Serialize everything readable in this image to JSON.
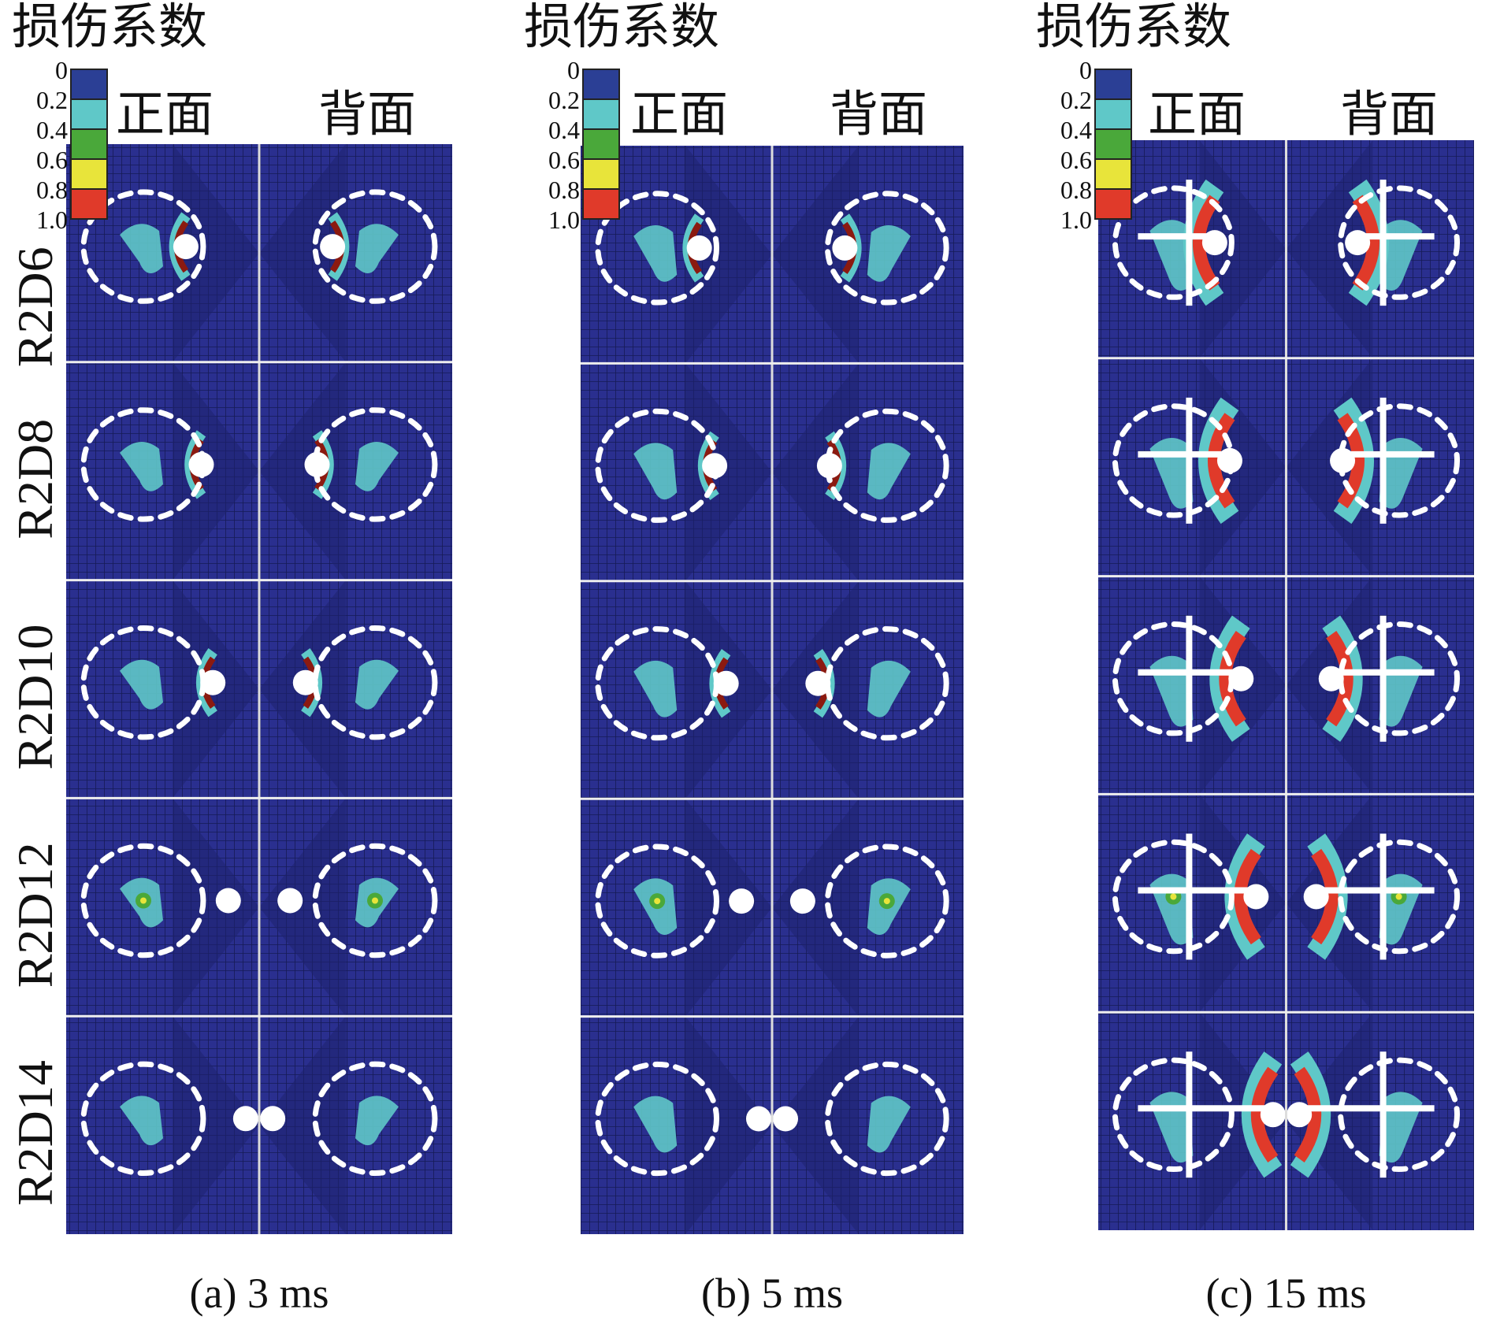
{
  "legend": {
    "title": "损伤系数",
    "ticks": [
      "0",
      "0.2",
      "0.4",
      "0.6",
      "0.8",
      "1.0"
    ],
    "colors": [
      "#2b3f95",
      "#5fc8c8",
      "#4aa83a",
      "#e8e43a",
      "#e03a2a"
    ]
  },
  "side_labels": {
    "front": "正面",
    "back": "背面"
  },
  "rows": [
    "R2D6",
    "R2D8",
    "R2D10",
    "R2D12",
    "R2D14"
  ],
  "panels": [
    {
      "caption": "(a)  3 ms"
    },
    {
      "caption": "(b)  5 ms"
    },
    {
      "caption": "(c)  15 ms"
    }
  ],
  "colors": {
    "mesh_background": "#2a2f8f",
    "mesh_line": "#151a55",
    "marker": "#ffffff",
    "damage_severe": "#8b1a10"
  }
}
